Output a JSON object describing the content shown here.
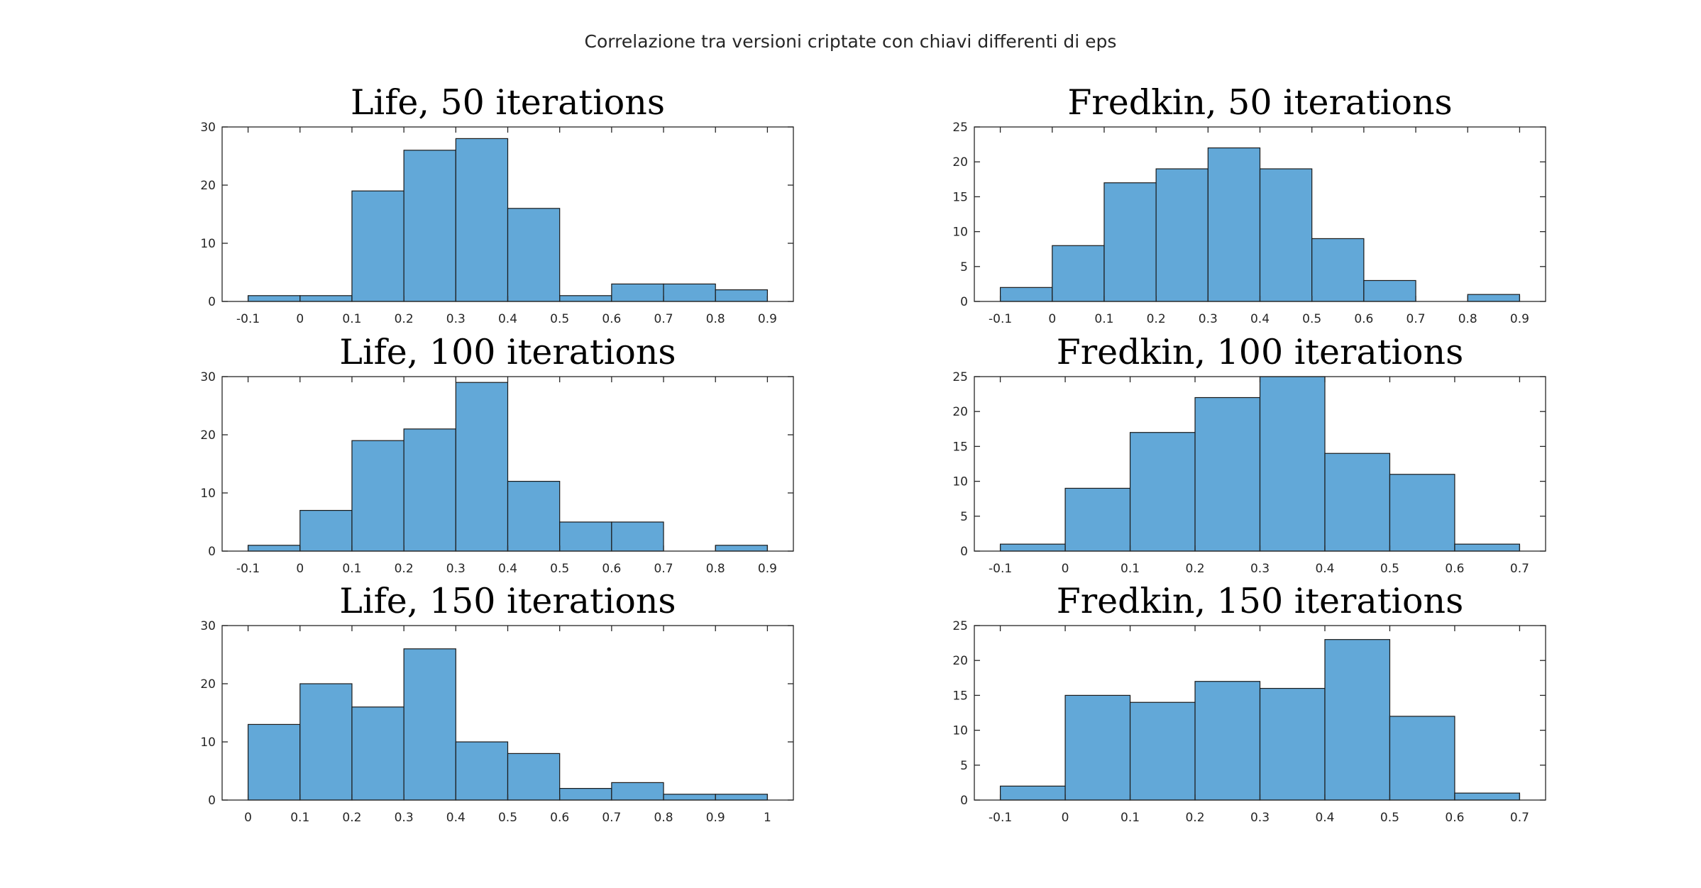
{
  "figure": {
    "title": "Correlazione tra versioni criptate con chiavi differenti di eps"
  },
  "colors": {
    "bar_fill": "#62a8d8",
    "bar_edge": "#1a1a1a",
    "axis": "#262626"
  },
  "chart_data": [
    {
      "type": "bar",
      "title": "Life, 50 iterations",
      "bin_edges": [
        -0.1,
        0,
        0.1,
        0.2,
        0.3,
        0.4,
        0.5,
        0.6,
        0.7,
        0.8,
        0.9
      ],
      "values": [
        1,
        1,
        19,
        26,
        28,
        16,
        1,
        3,
        3,
        2
      ],
      "xlim": [
        -0.15,
        0.95
      ],
      "ylim": [
        0,
        30
      ],
      "xticks": [
        -0.1,
        0,
        0.1,
        0.2,
        0.3,
        0.4,
        0.5,
        0.6,
        0.7,
        0.8,
        0.9
      ],
      "xtick_labels": [
        "-0.1",
        "0",
        "0.1",
        "0.2",
        "0.3",
        "0.4",
        "0.5",
        "0.6",
        "0.7",
        "0.8",
        "0.9"
      ],
      "yticks": [
        0,
        10,
        20,
        30
      ],
      "ytick_labels": [
        "0",
        "10",
        "20",
        "30"
      ],
      "grid": false
    },
    {
      "type": "bar",
      "title": "Fredkin, 50 iterations",
      "bin_edges": [
        -0.1,
        0,
        0.1,
        0.2,
        0.3,
        0.4,
        0.5,
        0.6,
        0.7,
        0.8,
        0.9
      ],
      "values": [
        2,
        8,
        17,
        19,
        22,
        19,
        9,
        3,
        0,
        1
      ],
      "xlim": [
        -0.15,
        0.95
      ],
      "ylim": [
        0,
        25
      ],
      "xticks": [
        -0.1,
        0,
        0.1,
        0.2,
        0.3,
        0.4,
        0.5,
        0.6,
        0.7,
        0.8,
        0.9
      ],
      "xtick_labels": [
        "-0.1",
        "0",
        "0.1",
        "0.2",
        "0.3",
        "0.4",
        "0.5",
        "0.6",
        "0.7",
        "0.8",
        "0.9"
      ],
      "yticks": [
        0,
        5,
        10,
        15,
        20,
        25
      ],
      "ytick_labels": [
        "0",
        "5",
        "10",
        "15",
        "20",
        "25"
      ],
      "grid": false
    },
    {
      "type": "bar",
      "title": "Life, 100 iterations",
      "bin_edges": [
        -0.1,
        0,
        0.1,
        0.2,
        0.3,
        0.4,
        0.5,
        0.6,
        0.7,
        0.8,
        0.9
      ],
      "values": [
        1,
        7,
        19,
        21,
        29,
        12,
        5,
        5,
        0,
        1
      ],
      "xlim": [
        -0.15,
        0.95
      ],
      "ylim": [
        0,
        30
      ],
      "xticks": [
        -0.1,
        0,
        0.1,
        0.2,
        0.3,
        0.4,
        0.5,
        0.6,
        0.7,
        0.8,
        0.9
      ],
      "xtick_labels": [
        "-0.1",
        "0",
        "0.1",
        "0.2",
        "0.3",
        "0.4",
        "0.5",
        "0.6",
        "0.7",
        "0.8",
        "0.9"
      ],
      "yticks": [
        0,
        10,
        20,
        30
      ],
      "ytick_labels": [
        "0",
        "10",
        "20",
        "30"
      ],
      "grid": false
    },
    {
      "type": "bar",
      "title": "Fredkin, 100 iterations",
      "bin_edges": [
        -0.1,
        0,
        0.1,
        0.2,
        0.3,
        0.4,
        0.5,
        0.6,
        0.7
      ],
      "values": [
        1,
        9,
        17,
        22,
        25,
        14,
        11,
        1
      ],
      "xlim": [
        -0.14,
        0.74
      ],
      "ylim": [
        0,
        25
      ],
      "xticks": [
        -0.1,
        0,
        0.1,
        0.2,
        0.3,
        0.4,
        0.5,
        0.6,
        0.7
      ],
      "xtick_labels": [
        "-0.1",
        "0",
        "0.1",
        "0.2",
        "0.3",
        "0.4",
        "0.5",
        "0.6",
        "0.7"
      ],
      "yticks": [
        0,
        5,
        10,
        15,
        20,
        25
      ],
      "ytick_labels": [
        "0",
        "5",
        "10",
        "15",
        "20",
        "25"
      ],
      "grid": false
    },
    {
      "type": "bar",
      "title": "Life, 150 iterations",
      "bin_edges": [
        0,
        0.1,
        0.2,
        0.3,
        0.4,
        0.5,
        0.6,
        0.7,
        0.8,
        0.9,
        1
      ],
      "values": [
        13,
        20,
        16,
        26,
        10,
        8,
        2,
        3,
        1,
        1
      ],
      "xlim": [
        -0.05,
        1.05
      ],
      "ylim": [
        0,
        30
      ],
      "xticks": [
        0,
        0.1,
        0.2,
        0.3,
        0.4,
        0.5,
        0.6,
        0.7,
        0.8,
        0.9,
        1
      ],
      "xtick_labels": [
        "0",
        "0.1",
        "0.2",
        "0.3",
        "0.4",
        "0.5",
        "0.6",
        "0.7",
        "0.8",
        "0.9",
        "1"
      ],
      "yticks": [
        0,
        10,
        20,
        30
      ],
      "ytick_labels": [
        "0",
        "10",
        "20",
        "30"
      ],
      "grid": false
    },
    {
      "type": "bar",
      "title": "Fredkin, 150 iterations",
      "bin_edges": [
        -0.1,
        0,
        0.1,
        0.2,
        0.3,
        0.4,
        0.5,
        0.6,
        0.7
      ],
      "values": [
        2,
        15,
        14,
        17,
        16,
        23,
        12,
        1
      ],
      "xlim": [
        -0.14,
        0.74
      ],
      "ylim": [
        0,
        25
      ],
      "xticks": [
        -0.1,
        0,
        0.1,
        0.2,
        0.3,
        0.4,
        0.5,
        0.6,
        0.7
      ],
      "xtick_labels": [
        "-0.1",
        "0",
        "0.1",
        "0.2",
        "0.3",
        "0.4",
        "0.5",
        "0.6",
        "0.7"
      ],
      "yticks": [
        0,
        5,
        10,
        15,
        20,
        25
      ],
      "ytick_labels": [
        "0",
        "5",
        "10",
        "15",
        "20",
        "25"
      ],
      "grid": false
    }
  ]
}
